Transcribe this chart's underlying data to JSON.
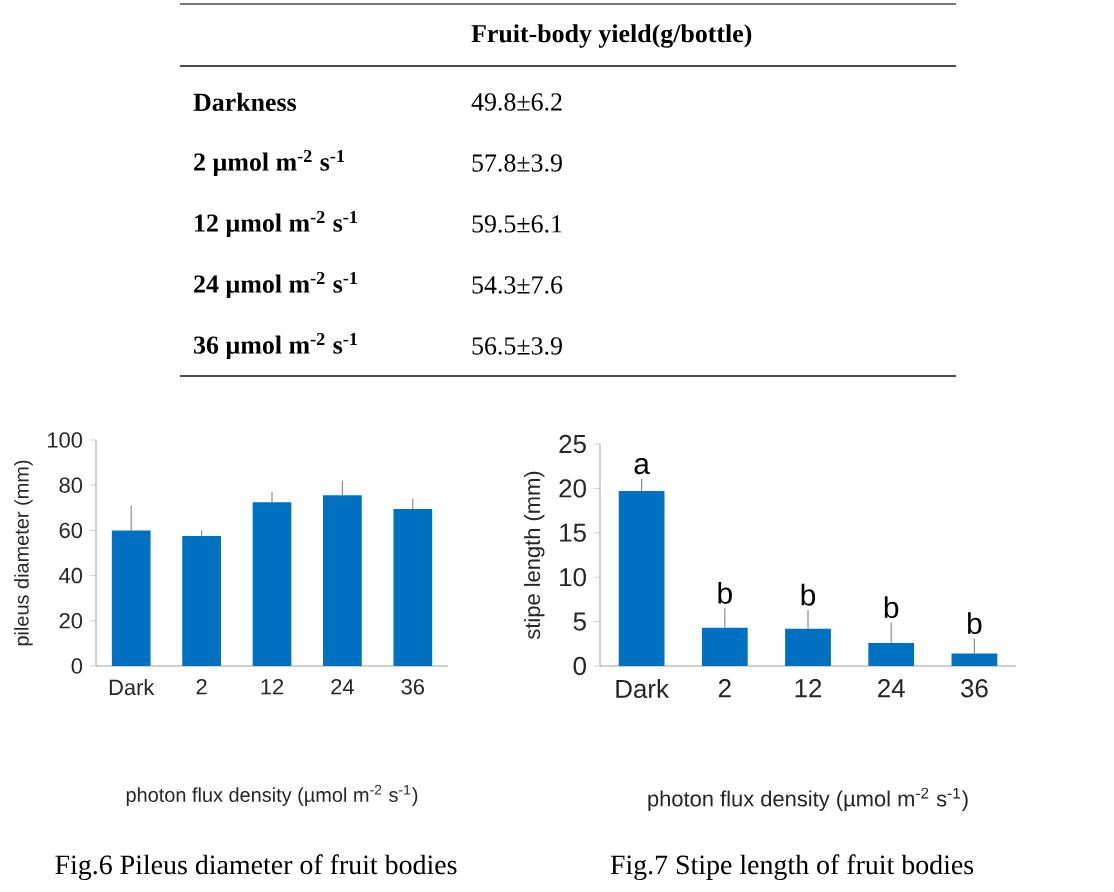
{
  "chart_data": [
    {
      "type": "other",
      "title": "Fruit-body yield(g/bottle)",
      "categories": [
        "Darkness",
        "2 µmol m$^{-2}$ s$^{-1}$",
        "12 µmol m$^{-2}$ s$^{-1}$",
        "24 µmol m$^{-2}$ s$^{-1}$",
        "36 µmol m$^{-2}$ s$^{-1}$"
      ],
      "value_labels": [
        "49.8±6.2",
        "57.8±3.9",
        "59.5±6.1",
        "54.3±7.6",
        "56.5±3.9"
      ]
    },
    {
      "type": "bar",
      "ylabel": "pileus diameter (mm)",
      "xlabel": "photon flux density (µmol m$^{-2}$ s$^{-1}$)",
      "categories": [
        "Dark",
        "2",
        "12",
        "24",
        "36"
      ],
      "values": [
        60,
        57.5,
        72.5,
        75.5,
        69.5
      ],
      "errors": [
        [
          60,
          71
        ],
        [
          57.5,
          60
        ],
        [
          72.5,
          77
        ],
        [
          75.5,
          82
        ],
        [
          69.5,
          74
        ]
      ],
      "color": "#0070c0",
      "ylim": [
        0,
        100
      ],
      "yticks": [
        0,
        20,
        40,
        60,
        80,
        100
      ],
      "annotations": [
        "Fig.6 Pileus diameter of fruit bodies"
      ]
    },
    {
      "type": "bar",
      "ylabel": "stipe length (mm)",
      "xlabel": "photon flux density (µmol m$^{-2}$ s$^{-1}$)",
      "categories": [
        "Dark",
        "2",
        "12",
        "24",
        "36"
      ],
      "values": [
        19.7,
        4.3,
        4.2,
        2.6,
        1.4
      ],
      "errors": [
        [
          19.7,
          21.1
        ],
        [
          4.3,
          6.5
        ],
        [
          4.2,
          6.3
        ],
        [
          2.6,
          4.9
        ],
        [
          1.4,
          3.1
        ]
      ],
      "color": "#0070c0",
      "ylim": [
        0,
        25
      ],
      "yticks": [
        0,
        5,
        10,
        15,
        20,
        25
      ],
      "annotations": [
        {
          "text": "a",
          "x": "Dark",
          "y": 21.1
        },
        {
          "text": "b",
          "x": "2",
          "y": 6.5
        },
        {
          "text": "b",
          "x": "12",
          "y": 6.3
        },
        {
          "text": "b",
          "x": "24",
          "y": 4.9
        },
        {
          "text": "b",
          "x": "36",
          "y": 3.1
        },
        "Fig.7 Stipe length of fruit bodies"
      ]
    }
  ]
}
